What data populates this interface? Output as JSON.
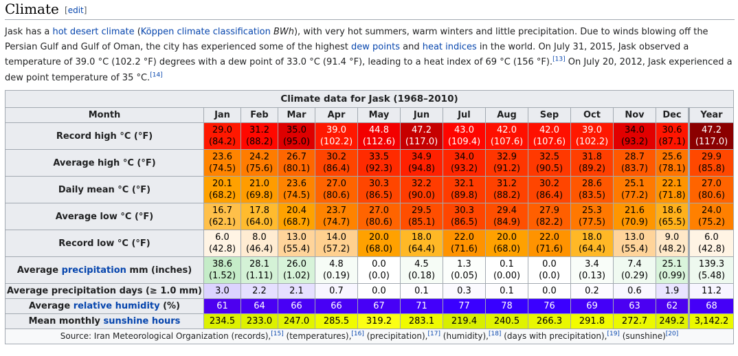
{
  "section": {
    "title": "Climate",
    "edit_label": "edit"
  },
  "intro": {
    "p1": "Jask has a ",
    "link_hot_desert": "hot desert climate",
    "p2": " (",
    "link_koppen": "Köppen climate classification",
    "p3": " ",
    "bwh": "BWh",
    "p4": "), with very hot summers, warm winters and little precipitation. Due to winds blowing off the Persian Gulf and Gulf of Oman, the city has experienced some of the highest ",
    "link_dew": "dew points",
    "p5": " and ",
    "link_heat": "heat indices",
    "p6": " in the world. On July 31, 2015, Jask observed a temperature of 39.0 °C (102.2 °F) degrees with a dew point of 33.0 °C (91.4 °F), leading to a heat index of 69 °C (156 °F).",
    "ref13": "[13]",
    "p7": " On July 20, 2012, Jask experienced a dew point temperature of 35 °C.",
    "ref14": "[14]"
  },
  "table": {
    "caption": "Climate data for Jask (1968–2010)",
    "month_header": "Month",
    "months": [
      "Jan",
      "Feb",
      "Mar",
      "Apr",
      "May",
      "Jun",
      "Jul",
      "Aug",
      "Sep",
      "Oct",
      "Nov",
      "Dec"
    ],
    "year_header": "Year",
    "label_avg_prefix": "Average ",
    "label_precipitation": "precipitation",
    "label_precip_suffix": " mm (inches)",
    "label_humidity": "relative humidity",
    "label_humidity_suffix": " (%)",
    "label_sun_prefix": "Mean monthly ",
    "label_sunshine": "sunshine hours",
    "source": {
      "s1": "Source: Iran Meteorological Organization (records),",
      "r15": "[15]",
      "s2": " (temperatures),",
      "r16": "[16]",
      "s3": " (precipitation),",
      "r17": "[17]",
      "s4": " (humidity),",
      "r18": "[18]",
      "s5": " (days with precipitation),",
      "r19": "[19]",
      "s6": " (sunshine)",
      "r20": "[20]"
    },
    "rows": [
      {
        "label": "Record high °C (°F)",
        "two_line": true,
        "values": [
          [
            "29.0",
            "(84.2)"
          ],
          [
            "31.2",
            "(88.2)"
          ],
          [
            "35.0",
            "(95.0)"
          ],
          [
            "39.0",
            "(102.2)"
          ],
          [
            "44.8",
            "(112.6)"
          ],
          [
            "47.2",
            "(117.0)"
          ],
          [
            "43.0",
            "(109.4)"
          ],
          [
            "42.0",
            "(107.6)"
          ],
          [
            "42.0",
            "(107.6)"
          ],
          [
            "39.0",
            "(102.2)"
          ],
          [
            "34.0",
            "(93.2)"
          ],
          [
            "30.6",
            "(87.1)"
          ]
        ],
        "year": [
          "47.2",
          "(117.0)"
        ],
        "colors": [
          "#ff1800",
          "#ff0800",
          "#de0000",
          "#ff1800",
          "#f30000",
          "#c60000",
          "#ff0500",
          "#ff1000",
          "#ff1000",
          "#ff1800",
          "#e20000",
          "#ff1500"
        ],
        "year_color": "#8b0000",
        "text_colors": [
          "#000",
          "#000",
          "#000",
          "#fff",
          "#fff",
          "#fff",
          "#fff",
          "#fff",
          "#fff",
          "#fff",
          "#000",
          "#000"
        ],
        "year_text_color": "#fff"
      },
      {
        "label": "Average high °C (°F)",
        "two_line": true,
        "values": [
          [
            "23.6",
            "(74.5)"
          ],
          [
            "24.2",
            "(75.6)"
          ],
          [
            "26.7",
            "(80.1)"
          ],
          [
            "30.2",
            "(86.4)"
          ],
          [
            "33.5",
            "(92.3)"
          ],
          [
            "34.9",
            "(94.8)"
          ],
          [
            "34.0",
            "(93.2)"
          ],
          [
            "32.9",
            "(91.2)"
          ],
          [
            "32.5",
            "(90.5)"
          ],
          [
            "31.8",
            "(89.2)"
          ],
          [
            "28.7",
            "(83.7)"
          ],
          [
            "25.6",
            "(78.1)"
          ]
        ],
        "year": [
          "29.9",
          "(85.8)"
        ],
        "colors": [
          "#ff8400",
          "#ff7c00",
          "#ff6700",
          "#ff4500",
          "#ff2b00",
          "#ff2100",
          "#ff2700",
          "#ff3600",
          "#ff3900",
          "#ff3f00",
          "#ff5900",
          "#ff7500"
        ],
        "year_color": "#ff4800",
        "text_colors": [
          "#000",
          "#000",
          "#000",
          "#000",
          "#000",
          "#000",
          "#000",
          "#000",
          "#000",
          "#000",
          "#000",
          "#000"
        ],
        "year_text_color": "#000"
      },
      {
        "label": "Daily mean °C (°F)",
        "two_line": true,
        "values": [
          [
            "20.1",
            "(68.2)"
          ],
          [
            "21.0",
            "(69.8)"
          ],
          [
            "23.6",
            "(74.5)"
          ],
          [
            "27.0",
            "(80.6)"
          ],
          [
            "30.3",
            "(86.5)"
          ],
          [
            "32.2",
            "(90.0)"
          ],
          [
            "32.1",
            "(89.8)"
          ],
          [
            "31.2",
            "(88.2)"
          ],
          [
            "30.2",
            "(86.4)"
          ],
          [
            "28.6",
            "(83.5)"
          ],
          [
            "25.1",
            "(77.2)"
          ],
          [
            "22.1",
            "(71.8)"
          ]
        ],
        "year": [
          "27.0",
          "(80.6)"
        ],
        "colors": [
          "#ffa100",
          "#ff9c00",
          "#ff8400",
          "#ff6400",
          "#ff4600",
          "#ff3c00",
          "#ff3c00",
          "#ff4200",
          "#ff4500",
          "#ff5700",
          "#ff7a00",
          "#ff9400"
        ],
        "year_color": "#ff6400",
        "text_colors": [
          "#000",
          "#000",
          "#000",
          "#000",
          "#000",
          "#000",
          "#000",
          "#000",
          "#000",
          "#000",
          "#000",
          "#000"
        ],
        "year_text_color": "#000"
      },
      {
        "label": "Average low °C (°F)",
        "two_line": true,
        "values": [
          [
            "16.7",
            "(62.1)"
          ],
          [
            "17.8",
            "(64.0)"
          ],
          [
            "20.4",
            "(68.7)"
          ],
          [
            "23.7",
            "(74.7)"
          ],
          [
            "27.0",
            "(80.6)"
          ],
          [
            "29.5",
            "(85.1)"
          ],
          [
            "30.3",
            "(86.5)"
          ],
          [
            "29.4",
            "(84.9)"
          ],
          [
            "27.9",
            "(82.2)"
          ],
          [
            "25.3",
            "(77.5)"
          ],
          [
            "21.6",
            "(70.9)"
          ],
          [
            "18.6",
            "(65.5)"
          ]
        ],
        "year": [
          "24.0",
          "(75.2)"
        ],
        "colors": [
          "#ffc04a",
          "#ffbb2e",
          "#ffa200",
          "#ff8300",
          "#ff6400",
          "#ff4e00",
          "#ff4600",
          "#ff4f00",
          "#ff5f00",
          "#ff7800",
          "#ff9600",
          "#ffb11b"
        ],
        "year_color": "#ff8000",
        "text_colors": [
          "#000",
          "#000",
          "#000",
          "#000",
          "#000",
          "#000",
          "#000",
          "#000",
          "#000",
          "#000",
          "#000",
          "#000"
        ],
        "year_text_color": "#000"
      },
      {
        "label": "Record low °C (°F)",
        "two_line": true,
        "values": [
          [
            "6.0",
            "(42.8)"
          ],
          [
            "8.0",
            "(46.4)"
          ],
          [
            "13.0",
            "(55.4)"
          ],
          [
            "14.0",
            "(57.2)"
          ],
          [
            "20.0",
            "(68.0)"
          ],
          [
            "18.0",
            "(64.4)"
          ],
          [
            "22.0",
            "(71.6)"
          ],
          [
            "20.0",
            "(68.0)"
          ],
          [
            "22.0",
            "(71.6)"
          ],
          [
            "18.0",
            "(64.4)"
          ],
          [
            "13.0",
            "(55.4)"
          ],
          [
            "9.0",
            "(48.2)"
          ]
        ],
        "year": [
          "6.0",
          "(42.8)"
        ],
        "colors": [
          "#fff4e4",
          "#ffecd2",
          "#ffd49a",
          "#ffd08f",
          "#ffa100",
          "#ffb826",
          "#ff9300",
          "#ffa100",
          "#ff9300",
          "#ffb826",
          "#ffd49a",
          "#ffe8c8"
        ],
        "year_color": "#fff4e4",
        "text_colors": [
          "#000",
          "#000",
          "#000",
          "#000",
          "#000",
          "#000",
          "#000",
          "#000",
          "#000",
          "#000",
          "#000",
          "#000"
        ],
        "year_text_color": "#000"
      },
      {
        "label_html_key": "precip",
        "two_line": true,
        "values": [
          [
            "38.6",
            "(1.52)"
          ],
          [
            "28.1",
            "(1.11)"
          ],
          [
            "26.0",
            "(1.02)"
          ],
          [
            "4.8",
            "(0.19)"
          ],
          [
            "0.0",
            "(0.0)"
          ],
          [
            "4.5",
            "(0.18)"
          ],
          [
            "1.3",
            "(0.05)"
          ],
          [
            "0.1",
            "(0.00)"
          ],
          [
            "0.0",
            "(0.0)"
          ],
          [
            "3.4",
            "(0.13)"
          ],
          [
            "7.4",
            "(0.29)"
          ],
          [
            "25.1",
            "(0.99)"
          ]
        ],
        "year": [
          "139.3",
          "(5.48)"
        ],
        "colors": [
          "#c5ecc8",
          "#d4f2d6",
          "#d7f3d9",
          "#f6fcf6",
          "#ffffff",
          "#f6fcf6",
          "#fcfefc",
          "#ffffff",
          "#ffffff",
          "#f9fdf9",
          "#f0faf1",
          "#d9f4db"
        ],
        "year_color": "#eef9ef",
        "text_colors": [
          "#000",
          "#000",
          "#000",
          "#000",
          "#000",
          "#000",
          "#000",
          "#000",
          "#000",
          "#000",
          "#000",
          "#000"
        ],
        "year_text_color": "#000"
      },
      {
        "label": "Average precipitation days (≥ 1.0 mm)",
        "two_line": false,
        "values": [
          "3.0",
          "2.2",
          "2.1",
          "0.7",
          "0.0",
          "0.1",
          "0.3",
          "0.1",
          "0.0",
          "0.2",
          "0.6",
          "1.9"
        ],
        "year": "11.2",
        "colors": [
          "#dcd3ff",
          "#e5dfff",
          "#e6e0ff",
          "#f8f6ff",
          "#ffffff",
          "#fefdff",
          "#fbfaff",
          "#fefdff",
          "#ffffff",
          "#fdfcff",
          "#f9f8ff",
          "#e9e4ff"
        ],
        "year_color": "#f7f5ff",
        "text_colors": [
          "#000",
          "#000",
          "#000",
          "#000",
          "#000",
          "#000",
          "#000",
          "#000",
          "#000",
          "#000",
          "#000",
          "#000"
        ],
        "year_text_color": "#000"
      },
      {
        "label_html_key": "humidity",
        "two_line": false,
        "values": [
          "61",
          "64",
          "66",
          "66",
          "67",
          "71",
          "77",
          "78",
          "76",
          "69",
          "63",
          "62"
        ],
        "year": "68",
        "colors": [
          "#4d00ef",
          "#4a00f3",
          "#4800f5",
          "#4800f5",
          "#4700f6",
          "#4300fa",
          "#3a00ff",
          "#3800ff",
          "#3b00ff",
          "#4400f8",
          "#4b00f2",
          "#4c00f0"
        ],
        "year_color": "#4500f7",
        "text_colors": [
          "#fff",
          "#fff",
          "#fff",
          "#fff",
          "#fff",
          "#fff",
          "#fff",
          "#fff",
          "#fff",
          "#fff",
          "#fff",
          "#fff"
        ],
        "year_text_color": "#fff"
      },
      {
        "label_html_key": "sunshine",
        "two_line": false,
        "values": [
          "234.5",
          "233.0",
          "247.0",
          "285.5",
          "319.2",
          "283.1",
          "219.4",
          "240.5",
          "266.3",
          "291.8",
          "272.7",
          "249.2"
        ],
        "year": "3,142.2",
        "colors": [
          "#ddf100",
          "#ddf100",
          "#e2f400",
          "#f0fb00",
          "#fcff14",
          "#effa00",
          "#d8ee00",
          "#e0f300",
          "#e9f700",
          "#f2fc00",
          "#ebf800",
          "#e2f400"
        ],
        "year_color": "#ebf800",
        "text_colors": [
          "#000",
          "#000",
          "#000",
          "#000",
          "#000",
          "#000",
          "#000",
          "#000",
          "#000",
          "#000",
          "#000",
          "#000"
        ],
        "year_text_color": "#000"
      }
    ]
  }
}
